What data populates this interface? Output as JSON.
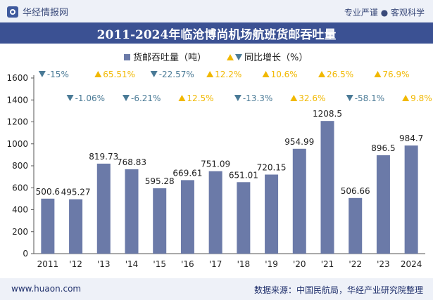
{
  "header": {
    "brand": "华经情报网",
    "slogan": "专业严谨 ● 客观科学",
    "title": "2011-2024年临沧博尚机场航班货邮吞吐量"
  },
  "footer": {
    "url": "www.huaon.com",
    "source": "数据来源：中国民航局，华经产业研究院整理"
  },
  "colors": {
    "bar": "#6b7aa8",
    "decline": "#4a7a96",
    "growth": "#f1b800",
    "title_bg": "#3b5193"
  },
  "chart_data": {
    "type": "bar",
    "categories": [
      "2011",
      "'12",
      "'13",
      "'14",
      "'15",
      "'16",
      "'17",
      "'18",
      "'19",
      "'20",
      "'21",
      "'22",
      "'23",
      "2024"
    ],
    "series": [
      {
        "name": "货邮吞吐量（吨）",
        "values": [
          500.6,
          495.27,
          819.73,
          768.83,
          595.28,
          669.61,
          751.09,
          651.01,
          720.15,
          954.99,
          1208.5,
          506.66,
          896.5,
          984.7
        ],
        "value_labels": [
          "500.6",
          "495.27",
          "819.73",
          "768.83",
          "595.28",
          "669.61",
          "751.09",
          "651.01",
          "720.15",
          "954.99",
          "1208.5",
          "506.66",
          "896.5",
          "984.7"
        ]
      },
      {
        "name": "同比增长（%）",
        "values": [
          -15,
          -1.06,
          65.51,
          -6.21,
          -22.57,
          12.5,
          12.2,
          -13.3,
          10.6,
          32.6,
          26.5,
          -58.1,
          76.9,
          9.8
        ],
        "labels": [
          "-15%",
          "-1.06%",
          "65.51%",
          "-6.21%",
          "-22.57%",
          "12.5%",
          "12.2%",
          "-13.3%",
          "10.6%",
          "32.6%",
          "26.5%",
          "-58.1%",
          "76.9%",
          "9.8%"
        ]
      }
    ],
    "ylim": [
      0,
      1600
    ],
    "yticks": [
      "0",
      "200",
      "400",
      "600",
      "800",
      "1000",
      "1200",
      "1400",
      "1600"
    ],
    "legend_position": "top-center",
    "grid": false
  }
}
